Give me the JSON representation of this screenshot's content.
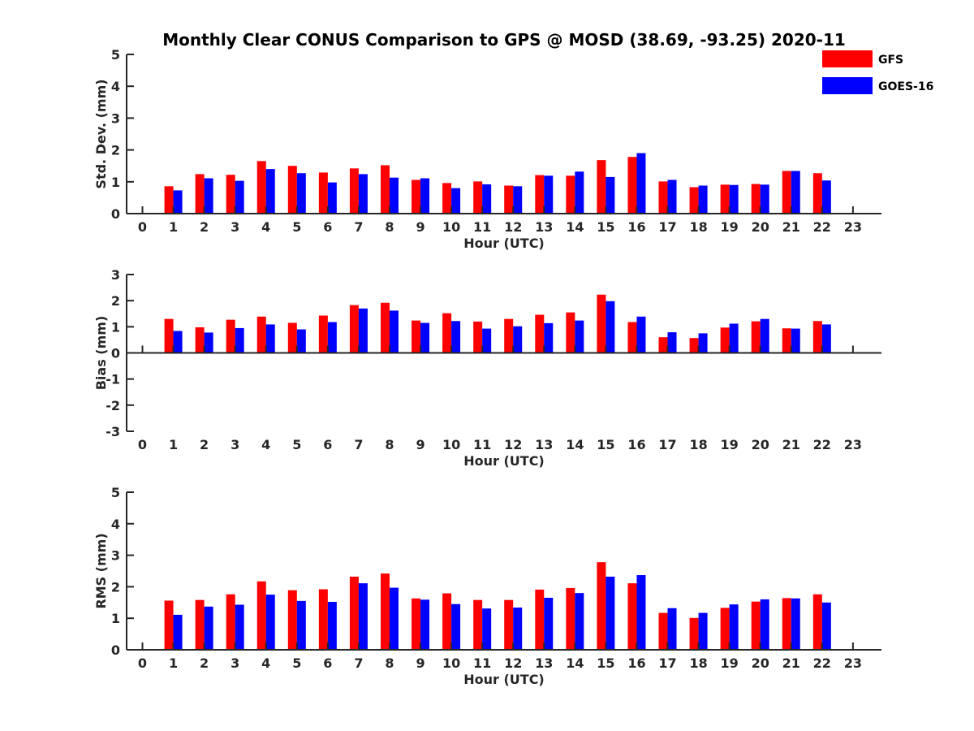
{
  "title": "Monthly Clear CONUS Comparison to GPS @ MOSD (38.69, -93.25) 2020-11",
  "legend": [
    {
      "name": "GFS",
      "color": "#ff0000"
    },
    {
      "name": "GOES-16",
      "color": "#0000ff"
    }
  ],
  "chart_data": [
    {
      "type": "bar",
      "xlabel": "Hour (UTC)",
      "ylabel": "Std. Dev. (mm)",
      "ylim": [
        0,
        5
      ],
      "yticks": [
        0,
        1,
        2,
        3,
        4,
        5
      ],
      "categories": [
        "0",
        "1",
        "2",
        "3",
        "4",
        "5",
        "6",
        "7",
        "8",
        "9",
        "10",
        "11",
        "12",
        "13",
        "14",
        "15",
        "16",
        "17",
        "18",
        "19",
        "20",
        "21",
        "22",
        "23"
      ],
      "series": [
        {
          "name": "GFS",
          "color": "#ff0000",
          "values": [
            null,
            0.86,
            1.24,
            1.22,
            1.65,
            1.5,
            1.29,
            1.42,
            1.52,
            1.06,
            0.96,
            1.01,
            0.88,
            1.21,
            1.19,
            1.68,
            1.78,
            1.01,
            0.83,
            0.91,
            0.93,
            1.34,
            1.27,
            null
          ]
        },
        {
          "name": "GOES-16",
          "color": "#0000ff",
          "values": [
            null,
            0.73,
            1.11,
            1.03,
            1.4,
            1.27,
            0.98,
            1.24,
            1.13,
            1.11,
            0.8,
            0.92,
            0.86,
            1.19,
            1.32,
            1.15,
            1.9,
            1.06,
            0.88,
            0.9,
            0.91,
            1.34,
            1.04,
            null
          ]
        }
      ]
    },
    {
      "type": "bar",
      "xlabel": "Hour (UTC)",
      "ylabel": "Bias (mm)",
      "ylim": [
        -3,
        3
      ],
      "yticks": [
        -3,
        -2,
        -1,
        0,
        1,
        2,
        3
      ],
      "categories": [
        "0",
        "1",
        "2",
        "3",
        "4",
        "5",
        "6",
        "7",
        "8",
        "9",
        "10",
        "11",
        "12",
        "13",
        "14",
        "15",
        "16",
        "17",
        "18",
        "19",
        "20",
        "21",
        "22",
        "23"
      ],
      "series": [
        {
          "name": "GFS",
          "color": "#ff0000",
          "values": [
            null,
            1.3,
            0.98,
            1.27,
            1.39,
            1.15,
            1.43,
            1.83,
            1.92,
            1.24,
            1.52,
            1.2,
            1.3,
            1.46,
            1.55,
            2.23,
            1.18,
            0.6,
            0.57,
            0.97,
            1.21,
            0.94,
            1.22,
            null
          ]
        },
        {
          "name": "GOES-16",
          "color": "#0000ff",
          "values": [
            null,
            0.84,
            0.78,
            0.95,
            1.09,
            0.9,
            1.18,
            1.7,
            1.62,
            1.15,
            1.22,
            0.93,
            1.02,
            1.14,
            1.24,
            1.98,
            1.39,
            0.79,
            0.75,
            1.12,
            1.3,
            0.93,
            1.09,
            null
          ]
        }
      ]
    },
    {
      "type": "bar",
      "xlabel": "Hour (UTC)",
      "ylabel": "RMS (mm)",
      "ylim": [
        0,
        5
      ],
      "yticks": [
        0,
        1,
        2,
        3,
        4,
        5
      ],
      "categories": [
        "0",
        "1",
        "2",
        "3",
        "4",
        "5",
        "6",
        "7",
        "8",
        "9",
        "10",
        "11",
        "12",
        "13",
        "14",
        "15",
        "16",
        "17",
        "18",
        "19",
        "20",
        "21",
        "22",
        "23"
      ],
      "series": [
        {
          "name": "GFS",
          "color": "#ff0000",
          "values": [
            null,
            1.56,
            1.58,
            1.76,
            2.17,
            1.89,
            1.92,
            2.32,
            2.42,
            1.63,
            1.79,
            1.58,
            1.58,
            1.91,
            1.96,
            2.78,
            2.11,
            1.17,
            1.01,
            1.33,
            1.53,
            1.64,
            1.76,
            null
          ]
        },
        {
          "name": "GOES-16",
          "color": "#0000ff",
          "values": [
            null,
            1.11,
            1.37,
            1.43,
            1.75,
            1.55,
            1.52,
            2.11,
            1.97,
            1.59,
            1.45,
            1.31,
            1.34,
            1.65,
            1.8,
            2.32,
            2.37,
            1.32,
            1.17,
            1.44,
            1.6,
            1.63,
            1.5,
            null
          ]
        }
      ]
    }
  ]
}
